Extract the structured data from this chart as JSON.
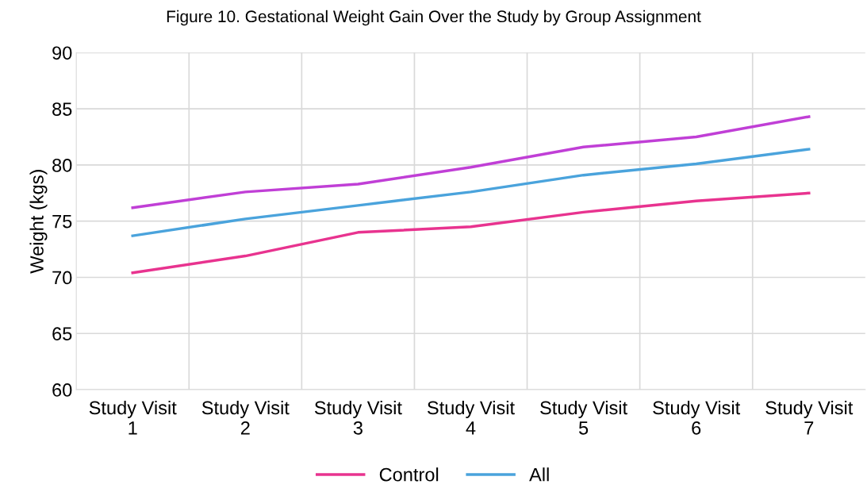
{
  "chart_data": {
    "type": "line",
    "title": "Figure 10. Gestational Weight Gain Over the Study by Group Assignment",
    "ylabel": "Weight (kgs)",
    "categories": [
      "Study Visit\n1",
      "Study Visit\n2",
      "Study Visit\n3",
      "Study Visit\n4",
      "Study Visit\n5",
      "Study Visit\n6",
      "Study Visit\n7"
    ],
    "series": [
      {
        "name": "Control",
        "color": "#e8338f",
        "values": [
          70.4,
          71.9,
          74.0,
          74.5,
          75.8,
          76.8,
          77.5
        ]
      },
      {
        "color": "#c03fd6",
        "values": [
          76.2,
          77.6,
          78.3,
          79.8,
          81.6,
          82.5,
          84.3
        ]
      },
      {
        "name": "All",
        "color": "#4aa3dc",
        "values": [
          73.7,
          75.2,
          76.4,
          77.6,
          79.1,
          80.1,
          81.4
        ]
      }
    ],
    "ylim": [
      60,
      90
    ],
    "yticks": [
      60,
      65,
      70,
      75,
      80,
      85,
      90
    ],
    "grid": true,
    "legend": "bottom",
    "marker": "none",
    "line_style": "solid"
  }
}
